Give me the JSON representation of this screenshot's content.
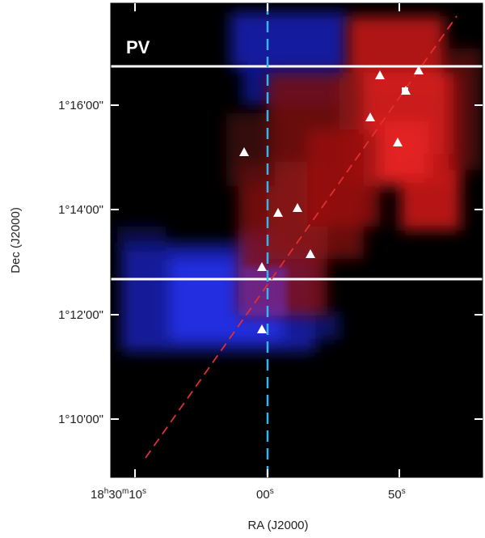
{
  "panel_label": "PV",
  "axes": {
    "x_label": "RA (J2000)",
    "y_label": "Dec (J2000)",
    "x_ticks": [
      {
        "label_h": "18",
        "label_hsup": "h",
        "label_m": "30",
        "label_msup": "m",
        "label_s": "10",
        "label_ssup": "s"
      },
      {
        "label_s": "00",
        "label_ssup": "s"
      },
      {
        "label_s": "50",
        "label_ssup": "s"
      }
    ],
    "y_ticks": [
      "1°16'00\"",
      "1°14'00\"",
      "1°12'00\"",
      "1°10'00\""
    ]
  },
  "colors": {
    "background": "#000000",
    "redshifted": "#e01818",
    "blueshifted": "#1a22e6",
    "pv_lines": "#ffffff",
    "outflow_axis": "#e03030",
    "reference_line": "#38b4ee",
    "markers": "#ffffff"
  },
  "sources": {
    "marker": "triangle",
    "count": 12
  }
}
